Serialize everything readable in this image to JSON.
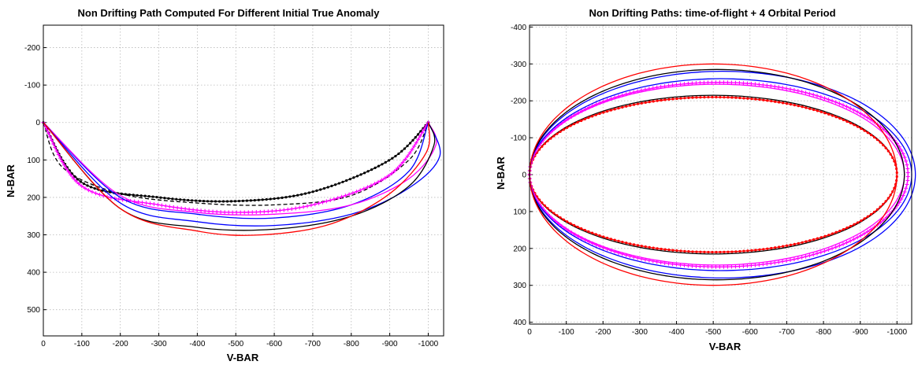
{
  "chart_data": [
    {
      "type": "line",
      "title": "Non Drifting Path Computed For Different Initial True Anomaly",
      "xlabel": "V-BAR",
      "ylabel": "N-BAR",
      "xlim": [
        0,
        -1040
      ],
      "ylim": [
        -260,
        570
      ],
      "x_reversed": true,
      "y_reversed": true,
      "grid": true,
      "xticks": [
        0,
        -100,
        -200,
        -300,
        -400,
        -500,
        -600,
        -700,
        -800,
        -900,
        -1000
      ],
      "yticks": [
        -200,
        -100,
        0,
        100,
        200,
        300,
        400,
        500
      ],
      "series": [
        {
          "color": "#000000",
          "style": "dashed",
          "x": [
            0,
            -50,
            -200,
            -400,
            -600,
            -800,
            -950,
            -1000
          ],
          "y": [
            0,
            120,
            190,
            215,
            220,
            195,
            100,
            0
          ]
        },
        {
          "color": "#000000",
          "style": "solid-markers",
          "x": [
            0,
            -100,
            -300,
            -500,
            -700,
            -900,
            -1000
          ],
          "y": [
            0,
            160,
            200,
            210,
            185,
            100,
            0
          ]
        },
        {
          "color": "#ff00ff",
          "style": "plus-markers",
          "x": [
            0,
            -100,
            -300,
            -500,
            -700,
            -900,
            -1000
          ],
          "y": [
            0,
            170,
            220,
            240,
            220,
            140,
            0
          ]
        },
        {
          "color": "#0000ff",
          "style": "solid",
          "x": [
            0,
            -200,
            -400,
            -600,
            -800,
            -950,
            -1000
          ],
          "y": [
            0,
            200,
            245,
            255,
            220,
            130,
            0
          ]
        },
        {
          "color": "#ff00ff",
          "style": "solid",
          "x": [
            0,
            -200,
            -400,
            -600,
            -800,
            -950,
            -1020,
            -1000
          ],
          "y": [
            0,
            195,
            240,
            245,
            220,
            150,
            60,
            0
          ]
        },
        {
          "color": "#0000ff",
          "style": "solid",
          "x": [
            0,
            -200,
            -400,
            -600,
            -800,
            -950,
            -1030,
            -1000
          ],
          "y": [
            0,
            215,
            265,
            275,
            245,
            175,
            90,
            0
          ]
        },
        {
          "color": "#000000",
          "style": "solid",
          "x": [
            0,
            -200,
            -400,
            -600,
            -800,
            -950,
            -1015,
            -1000
          ],
          "y": [
            0,
            230,
            280,
            285,
            250,
            170,
            60,
            0
          ]
        },
        {
          "color": "#ff0000",
          "style": "solid",
          "x": [
            0,
            -200,
            -400,
            -570,
            -750,
            -900,
            -995,
            -1000
          ],
          "y": [
            0,
            230,
            290,
            300,
            270,
            190,
            80,
            0
          ]
        }
      ]
    },
    {
      "type": "line",
      "title": "Non Drifting Paths: time-of-flight + 4 Orbital Period",
      "xlabel": "V-BAR",
      "ylabel": "N-BAR",
      "xlim": [
        0,
        -1040
      ],
      "ylim": [
        -405,
        405
      ],
      "x_reversed": true,
      "y_reversed": true,
      "grid": true,
      "xticks": [
        0,
        -100,
        -200,
        -300,
        -400,
        -500,
        -600,
        -700,
        -800,
        -900,
        -1000
      ],
      "yticks": [
        -400,
        -300,
        -200,
        -100,
        0,
        100,
        200,
        300,
        400
      ],
      "series": [
        {
          "color": "#000000",
          "style": "solid",
          "cx": -500,
          "rx": 500,
          "ry": 215
        },
        {
          "color": "#ff0000",
          "style": "dot-markers",
          "cx": -500,
          "rx": 500,
          "ry": 210
        },
        {
          "color": "#ff00ff",
          "style": "plus-markers",
          "cx": -515,
          "rx": 515,
          "ry": 250
        },
        {
          "color": "#0000ff",
          "style": "solid",
          "cx": -520,
          "rx": 520,
          "ry": 260
        },
        {
          "color": "#ff00ff",
          "style": "solid",
          "cx": -510,
          "rx": 510,
          "ry": 245
        },
        {
          "color": "#0000ff",
          "style": "solid",
          "cx": -525,
          "rx": 525,
          "ry": 280
        },
        {
          "color": "#000000",
          "style": "solid",
          "cx": -510,
          "rx": 510,
          "ry": 285
        },
        {
          "color": "#ff0000",
          "style": "solid",
          "cx": -500,
          "rx": 500,
          "ry": 300
        }
      ]
    }
  ]
}
